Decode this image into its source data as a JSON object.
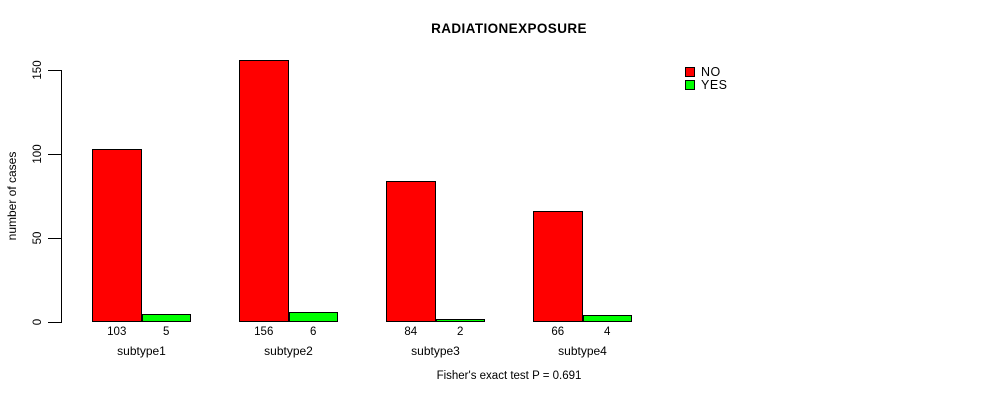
{
  "chart_data": {
    "type": "bar",
    "title": "RADIATIONEXPOSURE",
    "ylabel": "number of cases",
    "xlabel": "",
    "caption": "Fisher's exact test P = 0.691",
    "categories": [
      "subtype1",
      "subtype2",
      "subtype3",
      "subtype4"
    ],
    "series": [
      {
        "name": "NO",
        "color": "#ff0000",
        "values": [
          103,
          156,
          84,
          66
        ]
      },
      {
        "name": "YES",
        "color": "#00ff00",
        "values": [
          5,
          6,
          2,
          4
        ]
      }
    ],
    "bar_value_labels": [
      [
        "103",
        "5"
      ],
      [
        "156",
        "6"
      ],
      [
        "84",
        "2"
      ],
      [
        "66",
        "4"
      ]
    ],
    "yticks": [
      0,
      50,
      100,
      150
    ],
    "ylim": [
      0,
      150
    ],
    "grid": false,
    "legend_position": "right",
    "axis_color": "#000000",
    "background_color": "#ffffff"
  }
}
